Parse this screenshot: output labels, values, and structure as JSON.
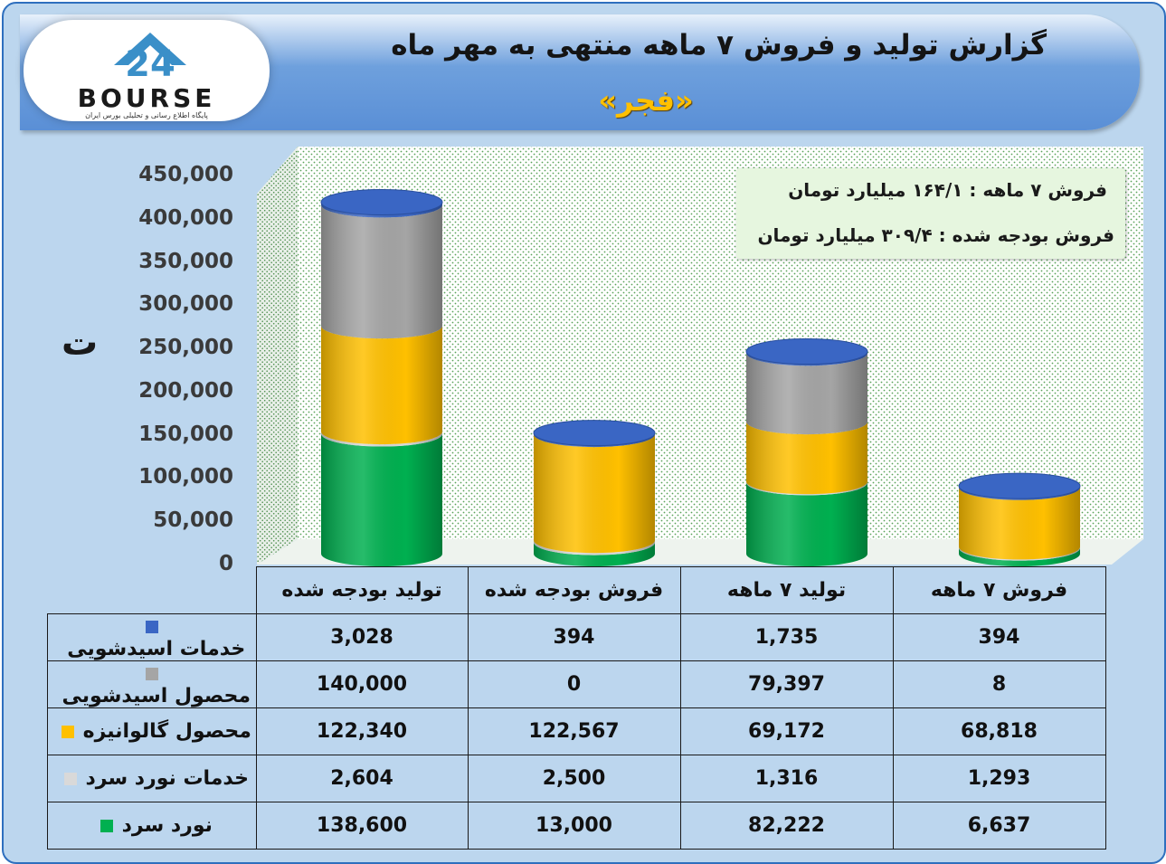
{
  "header": {
    "title": "گزارش تولید و فروش ۷ ماهه منتهی به مهر ماه",
    "subtitle": "«فجر»",
    "logo_text": "BOURSE",
    "logo_number": "24",
    "logo_tagline": "پایگاه اطلاع رسانی و تحلیلی بورس ایران"
  },
  "info_box": {
    "line1": "فروش ۷ ماهه : ۱۶۴/۱ میلیارد تومان",
    "line2": "فروش بودجه شده : ۳۰۹/۴ میلیارد تومان"
  },
  "axis_unit": "ت",
  "colors": {
    "acid_service": "#3a66c4",
    "acid_product": "#a5a5a5",
    "galvanized": "#ffc000",
    "cold_service": "#d9d9d9",
    "cold_roll": "#00b050"
  },
  "chart_data": {
    "type": "bar",
    "stacked": true,
    "style": "3d-cylinder",
    "categories": [
      "تولید بودجه شده",
      "فروش بودجه شده",
      "تولید ۷ ماهه",
      "فروش ۷ ماهه"
    ],
    "series": [
      {
        "name": "نورد سرد",
        "color": "#00b050",
        "values": [
          138600,
          13000,
          82222,
          6637
        ]
      },
      {
        "name": "خدمات نورد سرد",
        "color": "#d9d9d9",
        "values": [
          2604,
          2500,
          1316,
          1293
        ]
      },
      {
        "name": "محصول گالوانیزه",
        "color": "#ffc000",
        "values": [
          122340,
          122567,
          69172,
          68818
        ]
      },
      {
        "name": "محصول اسیدشویی",
        "color": "#a5a5a5",
        "values": [
          140000,
          0,
          79397,
          8
        ]
      },
      {
        "name": "خدمات اسیدشویی",
        "color": "#3a66c4",
        "values": [
          3028,
          394,
          1735,
          394
        ]
      }
    ],
    "yticks": [
      "0",
      "50,000",
      "100,000",
      "150,000",
      "200,000",
      "250,000",
      "300,000",
      "350,000",
      "400,000",
      "450,000"
    ],
    "ylim": [
      0,
      450000
    ],
    "grid": "dotted"
  },
  "table": {
    "headers": [
      "تولید بودجه شده",
      "فروش بودجه شده",
      "تولید ۷ ماهه",
      "فروش ۷ ماهه"
    ],
    "rows": [
      {
        "label": "خدمات اسیدشویی",
        "color": "#3a66c4",
        "cells": [
          "3,028",
          "394",
          "1,735",
          "394"
        ]
      },
      {
        "label": "محصول اسیدشویی",
        "color": "#a5a5a5",
        "cells": [
          "140,000",
          "0",
          "79,397",
          "8"
        ]
      },
      {
        "label": "محصول گالوانیزه",
        "color": "#ffc000",
        "cells": [
          "122,340",
          "122,567",
          "69,172",
          "68,818"
        ]
      },
      {
        "label": "خدمات نورد سرد",
        "color": "#d9d9d9",
        "cells": [
          "2,604",
          "2,500",
          "1,316",
          "1,293"
        ]
      },
      {
        "label": "نورد سرد",
        "color": "#00b050",
        "cells": [
          "138,600",
          "13,000",
          "82,222",
          "6,637"
        ]
      }
    ]
  }
}
